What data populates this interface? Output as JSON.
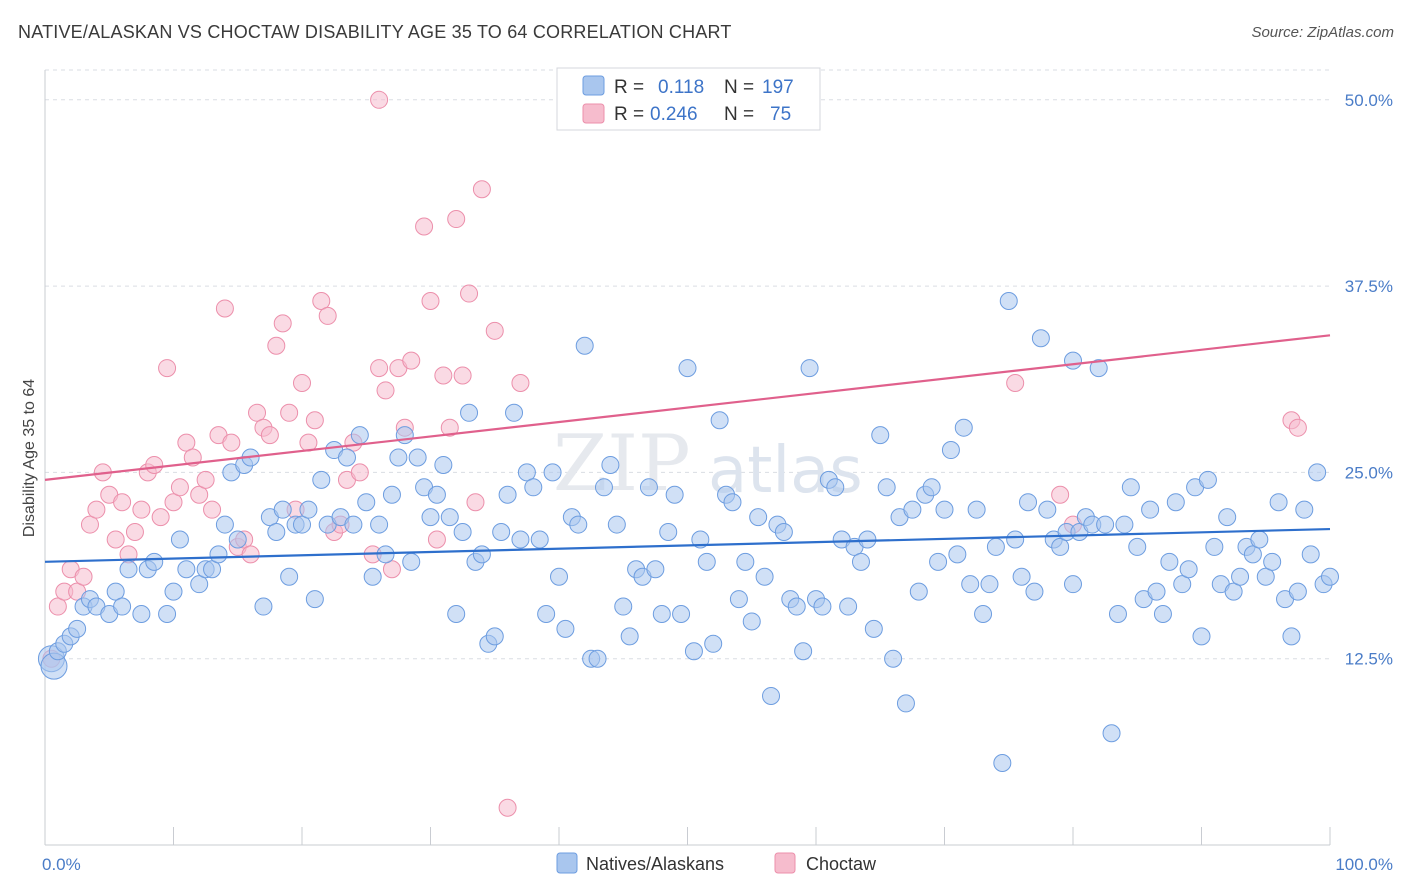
{
  "header": {
    "title": "NATIVE/ALASKAN VS CHOCTAW DISABILITY AGE 35 TO 64 CORRELATION CHART",
    "source": "Source: ZipAtlas.com"
  },
  "watermark": {
    "zip": "ZIP",
    "atlas": "atlas"
  },
  "legend": {
    "rows": [
      {
        "r_label": "R =",
        "r_value": "0.118",
        "n_label": "N =",
        "n_value": "197"
      },
      {
        "r_label": "R =",
        "r_value": "0.246",
        "n_label": "N =",
        "n_value": "75"
      }
    ]
  },
  "bottom_legend": {
    "series1": "Natives/Alaskans",
    "series2": "Choctaw"
  },
  "colors": {
    "blue_fill": "#a9c6ee",
    "blue_stroke": "#6d9de0",
    "blue_line": "#2e6fcc",
    "pink_fill": "#f6bccd",
    "pink_stroke": "#ec8fab",
    "pink_line": "#e0608c",
    "grid": "#dadde3",
    "axis_label": "#4a7cc7"
  },
  "chart_data": {
    "type": "scatter",
    "title": "NATIVE/ALASKAN VS CHOCTAW DISABILITY AGE 35 TO 64 CORRELATION CHART",
    "xlabel": "",
    "ylabel": "Disability Age 35 to 64",
    "xlim": [
      0,
      100
    ],
    "ylim": [
      0,
      52
    ],
    "x_tick_labels": [
      "0.0%",
      "100.0%"
    ],
    "y_ticks": [
      12.5,
      25.0,
      37.5,
      50.0
    ],
    "y_tick_labels": [
      "12.5%",
      "25.0%",
      "37.5%",
      "50.0%"
    ],
    "grid": true,
    "legend_position": "top-center",
    "series": [
      {
        "name": "Natives/Alaskans",
        "color": "#a9c6ee",
        "R": 0.118,
        "N": 197,
        "trend": {
          "x": [
            0,
            100
          ],
          "y": [
            19.0,
            21.2
          ]
        },
        "points": [
          [
            0.5,
            12.5
          ],
          [
            0.7,
            12.0
          ],
          [
            1.0,
            13.0
          ],
          [
            1.5,
            13.5
          ],
          [
            2.0,
            14.0
          ],
          [
            2.5,
            14.5
          ],
          [
            3.0,
            16.0
          ],
          [
            3.5,
            16.5
          ],
          [
            4.0,
            16.0
          ],
          [
            5.0,
            15.5
          ],
          [
            5.5,
            17.0
          ],
          [
            6.0,
            16.0
          ],
          [
            6.5,
            18.5
          ],
          [
            7.5,
            15.5
          ],
          [
            8.0,
            18.5
          ],
          [
            8.5,
            19.0
          ],
          [
            9.5,
            15.5
          ],
          [
            10.0,
            17.0
          ],
          [
            10.5,
            20.5
          ],
          [
            11.0,
            18.5
          ],
          [
            12.0,
            17.5
          ],
          [
            12.5,
            18.5
          ],
          [
            13.0,
            18.5
          ],
          [
            13.5,
            19.5
          ],
          [
            14.0,
            21.5
          ],
          [
            14.5,
            25.0
          ],
          [
            15.0,
            20.5
          ],
          [
            15.5,
            25.5
          ],
          [
            16.0,
            26.0
          ],
          [
            17.0,
            16.0
          ],
          [
            17.5,
            22.0
          ],
          [
            18.0,
            21.0
          ],
          [
            18.5,
            22.5
          ],
          [
            19.0,
            18.0
          ],
          [
            19.5,
            21.5
          ],
          [
            20.0,
            21.5
          ],
          [
            20.5,
            22.5
          ],
          [
            21.0,
            16.5
          ],
          [
            21.5,
            24.5
          ],
          [
            22.0,
            21.5
          ],
          [
            22.5,
            26.5
          ],
          [
            23.0,
            22.0
          ],
          [
            23.5,
            26.0
          ],
          [
            24.0,
            21.5
          ],
          [
            24.5,
            27.5
          ],
          [
            25.0,
            23.0
          ],
          [
            25.5,
            18.0
          ],
          [
            26.0,
            21.5
          ],
          [
            26.5,
            19.5
          ],
          [
            27.0,
            23.5
          ],
          [
            27.5,
            26.0
          ],
          [
            28.0,
            27.5
          ],
          [
            28.5,
            19.0
          ],
          [
            29.0,
            26.0
          ],
          [
            29.5,
            24.0
          ],
          [
            30.0,
            22.0
          ],
          [
            30.5,
            23.5
          ],
          [
            31.0,
            25.5
          ],
          [
            31.5,
            22.0
          ],
          [
            32.0,
            15.5
          ],
          [
            32.5,
            21.0
          ],
          [
            33.0,
            29.0
          ],
          [
            33.5,
            19.0
          ],
          [
            34.0,
            19.5
          ],
          [
            34.5,
            13.5
          ],
          [
            35.0,
            14.0
          ],
          [
            35.5,
            21.0
          ],
          [
            36.0,
            23.5
          ],
          [
            36.5,
            29.0
          ],
          [
            37.0,
            20.5
          ],
          [
            37.5,
            25.0
          ],
          [
            38.0,
            24.0
          ],
          [
            38.5,
            20.5
          ],
          [
            39.0,
            15.5
          ],
          [
            39.5,
            25.0
          ],
          [
            40.0,
            18.0
          ],
          [
            40.5,
            14.5
          ],
          [
            41.0,
            22.0
          ],
          [
            41.5,
            21.5
          ],
          [
            42.0,
            33.5
          ],
          [
            42.5,
            12.5
          ],
          [
            43.0,
            12.5
          ],
          [
            43.5,
            24.0
          ],
          [
            44.0,
            25.5
          ],
          [
            44.5,
            21.5
          ],
          [
            45.0,
            16.0
          ],
          [
            45.5,
            14.0
          ],
          [
            46.0,
            18.5
          ],
          [
            46.5,
            18.0
          ],
          [
            47.0,
            24.0
          ],
          [
            47.5,
            18.5
          ],
          [
            48.0,
            15.5
          ],
          [
            48.5,
            21.0
          ],
          [
            49.0,
            23.5
          ],
          [
            49.5,
            15.5
          ],
          [
            50.0,
            32.0
          ],
          [
            50.5,
            13.0
          ],
          [
            51.0,
            20.5
          ],
          [
            51.5,
            19.0
          ],
          [
            52.0,
            13.5
          ],
          [
            52.5,
            28.5
          ],
          [
            53.0,
            23.5
          ],
          [
            53.5,
            23.0
          ],
          [
            54.0,
            16.5
          ],
          [
            54.5,
            19.0
          ],
          [
            55.0,
            15.0
          ],
          [
            55.5,
            22.0
          ],
          [
            56.0,
            18.0
          ],
          [
            56.5,
            10.0
          ],
          [
            57.0,
            21.5
          ],
          [
            57.5,
            21.0
          ],
          [
            58.0,
            16.5
          ],
          [
            58.5,
            16.0
          ],
          [
            59.0,
            13.0
          ],
          [
            59.5,
            32.0
          ],
          [
            60.0,
            16.5
          ],
          [
            60.5,
            16.0
          ],
          [
            61.0,
            24.5
          ],
          [
            61.5,
            24.0
          ],
          [
            62.0,
            20.5
          ],
          [
            62.5,
            16.0
          ],
          [
            63.0,
            20.0
          ],
          [
            63.5,
            19.0
          ],
          [
            64.0,
            20.5
          ],
          [
            64.5,
            14.5
          ],
          [
            65.0,
            27.5
          ],
          [
            65.5,
            24.0
          ],
          [
            66.0,
            12.5
          ],
          [
            66.5,
            22.0
          ],
          [
            67.0,
            9.5
          ],
          [
            67.5,
            22.5
          ],
          [
            68.0,
            17.0
          ],
          [
            68.5,
            23.5
          ],
          [
            69.0,
            24.0
          ],
          [
            69.5,
            19.0
          ],
          [
            70.0,
            22.5
          ],
          [
            70.5,
            26.5
          ],
          [
            71.0,
            19.5
          ],
          [
            71.5,
            28.0
          ],
          [
            72.0,
            17.5
          ],
          [
            72.5,
            22.5
          ],
          [
            73.0,
            15.5
          ],
          [
            73.5,
            17.5
          ],
          [
            74.0,
            20.0
          ],
          [
            74.5,
            5.5
          ],
          [
            75.0,
            36.5
          ],
          [
            75.5,
            20.5
          ],
          [
            76.0,
            18.0
          ],
          [
            76.5,
            23.0
          ],
          [
            77.0,
            17.0
          ],
          [
            77.5,
            34.0
          ],
          [
            78.0,
            22.5
          ],
          [
            78.5,
            20.5
          ],
          [
            79.0,
            20.0
          ],
          [
            79.5,
            21.0
          ],
          [
            80.0,
            17.5
          ],
          [
            80.5,
            21.0
          ],
          [
            81.0,
            22.0
          ],
          [
            81.5,
            21.5
          ],
          [
            82.0,
            32.0
          ],
          [
            82.5,
            21.5
          ],
          [
            83.0,
            7.5
          ],
          [
            83.5,
            15.5
          ],
          [
            84.0,
            21.5
          ],
          [
            84.5,
            24.0
          ],
          [
            85.0,
            20.0
          ],
          [
            85.5,
            16.5
          ],
          [
            86.0,
            22.5
          ],
          [
            86.5,
            17.0
          ],
          [
            87.0,
            15.5
          ],
          [
            87.5,
            19.0
          ],
          [
            88.0,
            23.0
          ],
          [
            88.5,
            17.5
          ],
          [
            89.0,
            18.5
          ],
          [
            89.5,
            24.0
          ],
          [
            90.0,
            14.0
          ],
          [
            90.5,
            24.5
          ],
          [
            91.0,
            20.0
          ],
          [
            91.5,
            17.5
          ],
          [
            92.0,
            22.0
          ],
          [
            92.5,
            17.0
          ],
          [
            93.0,
            18.0
          ],
          [
            93.5,
            20.0
          ],
          [
            94.0,
            19.5
          ],
          [
            94.5,
            20.5
          ],
          [
            95.0,
            18.0
          ],
          [
            95.5,
            19.0
          ],
          [
            96.0,
            23.0
          ],
          [
            96.5,
            16.5
          ],
          [
            97.0,
            14.0
          ],
          [
            97.5,
            17.0
          ],
          [
            98.0,
            22.5
          ],
          [
            98.5,
            19.5
          ],
          [
            99.0,
            25.0
          ],
          [
            99.5,
            17.5
          ],
          [
            100.0,
            18.0
          ],
          [
            80.0,
            32.5
          ]
        ]
      },
      {
        "name": "Choctaw",
        "color": "#f6bccd",
        "R": 0.246,
        "N": 75,
        "trend": {
          "x": [
            0,
            100
          ],
          "y": [
            24.5,
            34.2
          ]
        },
        "points": [
          [
            0.5,
            12.5
          ],
          [
            1.0,
            16.0
          ],
          [
            1.5,
            17.0
          ],
          [
            2.0,
            18.5
          ],
          [
            2.5,
            17.0
          ],
          [
            3.0,
            18.0
          ],
          [
            3.5,
            21.5
          ],
          [
            4.0,
            22.5
          ],
          [
            4.5,
            25.0
          ],
          [
            5.0,
            23.5
          ],
          [
            5.5,
            20.5
          ],
          [
            6.0,
            23.0
          ],
          [
            6.5,
            19.5
          ],
          [
            7.0,
            21.0
          ],
          [
            7.5,
            22.5
          ],
          [
            8.0,
            25.0
          ],
          [
            8.5,
            25.5
          ],
          [
            9.0,
            22.0
          ],
          [
            9.5,
            32.0
          ],
          [
            10.0,
            23.0
          ],
          [
            10.5,
            24.0
          ],
          [
            11.0,
            27.0
          ],
          [
            11.5,
            26.0
          ],
          [
            12.0,
            23.5
          ],
          [
            12.5,
            24.5
          ],
          [
            13.0,
            22.5
          ],
          [
            13.5,
            27.5
          ],
          [
            14.0,
            36.0
          ],
          [
            14.5,
            27.0
          ],
          [
            15.0,
            20.0
          ],
          [
            15.5,
            20.5
          ],
          [
            16.0,
            19.5
          ],
          [
            16.5,
            29.0
          ],
          [
            17.0,
            28.0
          ],
          [
            17.5,
            27.5
          ],
          [
            18.0,
            33.5
          ],
          [
            18.5,
            35.0
          ],
          [
            19.0,
            29.0
          ],
          [
            19.5,
            22.5
          ],
          [
            20.0,
            31.0
          ],
          [
            20.5,
            27.0
          ],
          [
            21.0,
            28.5
          ],
          [
            21.5,
            36.5
          ],
          [
            22.0,
            35.5
          ],
          [
            22.5,
            21.0
          ],
          [
            23.0,
            21.5
          ],
          [
            23.5,
            24.5
          ],
          [
            24.0,
            27.0
          ],
          [
            24.5,
            25.0
          ],
          [
            25.5,
            19.5
          ],
          [
            26.0,
            32.0
          ],
          [
            26.5,
            30.5
          ],
          [
            27.0,
            18.5
          ],
          [
            27.5,
            32.0
          ],
          [
            28.0,
            28.0
          ],
          [
            28.5,
            32.5
          ],
          [
            29.5,
            41.5
          ],
          [
            30.0,
            36.5
          ],
          [
            30.5,
            20.5
          ],
          [
            31.0,
            31.5
          ],
          [
            31.5,
            28.0
          ],
          [
            32.0,
            42.0
          ],
          [
            32.5,
            31.5
          ],
          [
            33.0,
            37.0
          ],
          [
            33.5,
            23.0
          ],
          [
            34.0,
            44.0
          ],
          [
            35.0,
            34.5
          ],
          [
            36.0,
            2.5
          ],
          [
            37.0,
            31.0
          ],
          [
            26.0,
            50.0
          ],
          [
            75.5,
            31.0
          ],
          [
            79.0,
            23.5
          ],
          [
            80.0,
            21.5
          ],
          [
            97.0,
            28.5
          ],
          [
            97.5,
            28.0
          ]
        ]
      }
    ]
  }
}
